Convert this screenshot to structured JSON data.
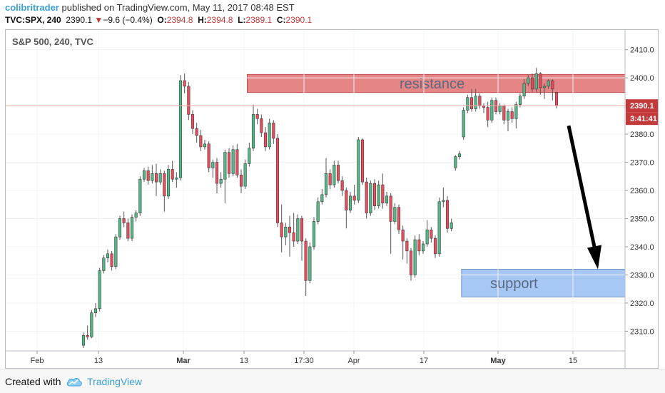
{
  "header": {
    "author": "colibritrader",
    "published_text": "published on TradingView.com, May 11, 2017 08:48 EST",
    "symbol": "TVC:SPX, 240",
    "last": "2390.1",
    "change_arrow": "▼",
    "change": "−9.6 (−0.4%)",
    "o_label": "O:",
    "o": "2394.8",
    "h_label": "H:",
    "h": "2394.8",
    "l_label": "L:",
    "l": "2389.1",
    "c_label": "C:",
    "c": "2390.1"
  },
  "footer": {
    "created_with": "Created with",
    "brand": "TradingView",
    "brand_icon": "tradingview-cloud-icon"
  },
  "chart_data": {
    "type": "candlestick",
    "title": "S&P 500, 240, TVC",
    "ylim": [
      2303,
      2417
    ],
    "y_ticks": [
      2310.0,
      2320.0,
      2330.0,
      2340.0,
      2350.0,
      2360.0,
      2370.0,
      2380.0,
      2390.0,
      2400.0,
      2410.0
    ],
    "x_tick_labels": [
      "Feb",
      "13",
      "Mar",
      "13",
      "17:30",
      "Apr",
      "17",
      "May",
      "15"
    ],
    "price_label": "2390.1",
    "countdown_label": "3:41:41",
    "current_price": 2390.1,
    "colors": {
      "up": "#53b987",
      "down": "#eb4d5c",
      "resistance": "#e06666",
      "support": "#8ab4f0",
      "arrow": "#000000",
      "label_bg": "#c43a3a"
    },
    "zones": [
      {
        "name": "resistance",
        "label": "resistance",
        "y_top": 2401.2,
        "y_bottom": 2394.8,
        "start_candle": 41
      },
      {
        "name": "support",
        "label": "support",
        "y_top": 2332.0,
        "y_bottom": 2322.2,
        "start_candle": 94
      }
    ],
    "arrow": {
      "from_y": 2383.0,
      "to_y": 2332.0
    },
    "candles": [
      [
        2305.0,
        2308.5,
        2304.0,
        2309.5
      ],
      [
        2308.5,
        2308.0,
        2307.0,
        2312.0
      ],
      [
        2308.0,
        2316.5,
        2307.5,
        2317.5
      ],
      [
        2316.5,
        2318.0,
        2315.0,
        2320.0
      ],
      [
        2318.0,
        2331.5,
        2317.0,
        2332.5
      ],
      [
        2331.5,
        2336.0,
        2330.5,
        2337.0
      ],
      [
        2336.0,
        2337.5,
        2334.5,
        2339.0
      ],
      [
        2337.5,
        2333.0,
        2331.5,
        2338.5
      ],
      [
        2333.0,
        2343.5,
        2332.0,
        2344.5
      ],
      [
        2343.5,
        2350.0,
        2342.5,
        2351.0
      ],
      [
        2350.0,
        2348.5,
        2347.0,
        2352.5
      ],
      [
        2348.5,
        2343.0,
        2342.0,
        2350.0
      ],
      [
        2343.0,
        2350.5,
        2342.0,
        2351.5
      ],
      [
        2350.5,
        2352.0,
        2349.0,
        2353.0
      ],
      [
        2352.0,
        2364.0,
        2351.0,
        2365.0
      ],
      [
        2364.0,
        2367.0,
        2363.0,
        2368.0
      ],
      [
        2367.0,
        2363.5,
        2362.0,
        2368.5
      ],
      [
        2363.5,
        2366.0,
        2362.5,
        2369.0
      ],
      [
        2366.0,
        2363.0,
        2358.0,
        2369.5
      ],
      [
        2363.0,
        2366.0,
        2362.0,
        2367.5
      ],
      [
        2366.0,
        2358.0,
        2352.5,
        2367.0
      ],
      [
        2358.0,
        2367.5,
        2357.0,
        2369.0
      ],
      [
        2367.5,
        2364.0,
        2363.0,
        2370.5
      ],
      [
        2364.0,
        2364.5,
        2361.0,
        2366.5
      ],
      [
        2364.5,
        2399.0,
        2363.5,
        2401.0
      ],
      [
        2399.0,
        2397.0,
        2394.5,
        2401.5
      ],
      [
        2397.0,
        2387.0,
        2385.0,
        2398.5
      ],
      [
        2387.0,
        2382.0,
        2380.0,
        2388.5
      ],
      [
        2382.0,
        2379.5,
        2377.0,
        2384.0
      ],
      [
        2379.5,
        2375.5,
        2374.0,
        2381.5
      ],
      [
        2375.5,
        2376.5,
        2374.5,
        2378.0
      ],
      [
        2376.5,
        2368.0,
        2366.5,
        2377.5
      ],
      [
        2368.0,
        2370.0,
        2364.5,
        2371.0
      ],
      [
        2370.0,
        2362.5,
        2359.0,
        2371.5
      ],
      [
        2362.5,
        2364.0,
        2361.0,
        2366.5
      ],
      [
        2364.0,
        2373.5,
        2355.5,
        2374.5
      ],
      [
        2373.5,
        2366.0,
        2364.5,
        2375.0
      ],
      [
        2366.0,
        2374.5,
        2365.0,
        2376.0
      ],
      [
        2374.5,
        2365.5,
        2364.5,
        2376.5
      ],
      [
        2365.5,
        2361.5,
        2359.0,
        2367.5
      ],
      [
        2361.5,
        2369.5,
        2360.5,
        2371.0
      ],
      [
        2369.5,
        2375.0,
        2368.5,
        2377.0
      ],
      [
        2375.0,
        2387.0,
        2374.0,
        2390.5
      ],
      [
        2387.0,
        2385.5,
        2383.5,
        2389.0
      ],
      [
        2385.5,
        2380.5,
        2379.0,
        2387.0
      ],
      [
        2380.5,
        2375.5,
        2374.0,
        2382.5
      ],
      [
        2375.5,
        2384.0,
        2374.5,
        2385.5
      ],
      [
        2384.0,
        2378.5,
        2376.5,
        2385.0
      ],
      [
        2378.5,
        2348.5,
        2347.0,
        2380.0
      ],
      [
        2348.5,
        2343.5,
        2338.0,
        2355.0
      ],
      [
        2343.5,
        2347.0,
        2340.5,
        2348.5
      ],
      [
        2347.0,
        2345.0,
        2336.5,
        2351.0
      ],
      [
        2345.0,
        2342.0,
        2340.0,
        2352.0
      ],
      [
        2342.0,
        2350.0,
        2341.0,
        2351.5
      ],
      [
        2350.0,
        2342.0,
        2335.0,
        2351.0
      ],
      [
        2342.0,
        2328.0,
        2322.5,
        2343.0
      ],
      [
        2328.0,
        2340.0,
        2327.0,
        2341.5
      ],
      [
        2340.0,
        2349.0,
        2339.0,
        2350.5
      ],
      [
        2349.0,
        2356.0,
        2348.0,
        2357.5
      ],
      [
        2356.0,
        2358.5,
        2355.0,
        2360.5
      ],
      [
        2358.5,
        2366.0,
        2357.5,
        2371.5
      ],
      [
        2366.0,
        2362.0,
        2360.5,
        2367.5
      ],
      [
        2362.0,
        2369.0,
        2361.0,
        2370.5
      ],
      [
        2369.0,
        2363.5,
        2362.5,
        2370.5
      ],
      [
        2363.5,
        2360.0,
        2358.0,
        2365.0
      ],
      [
        2360.0,
        2353.0,
        2346.5,
        2361.0
      ],
      [
        2353.0,
        2358.0,
        2352.0,
        2359.5
      ],
      [
        2358.0,
        2356.5,
        2355.0,
        2362.0
      ],
      [
        2356.5,
        2378.0,
        2355.5,
        2379.0
      ],
      [
        2378.0,
        2363.0,
        2362.0,
        2378.5
      ],
      [
        2363.0,
        2352.0,
        2350.0,
        2364.5
      ],
      [
        2352.0,
        2362.5,
        2351.0,
        2363.5
      ],
      [
        2362.5,
        2354.5,
        2353.0,
        2364.0
      ],
      [
        2354.5,
        2362.0,
        2353.5,
        2363.5
      ],
      [
        2362.0,
        2355.5,
        2353.5,
        2366.0
      ],
      [
        2355.5,
        2358.0,
        2354.5,
        2359.5
      ],
      [
        2358.0,
        2349.0,
        2337.5,
        2359.0
      ],
      [
        2349.0,
        2354.0,
        2348.0,
        2355.5
      ],
      [
        2354.0,
        2346.0,
        2344.5,
        2355.0
      ],
      [
        2346.0,
        2342.0,
        2335.5,
        2347.5
      ],
      [
        2342.0,
        2338.5,
        2334.0,
        2343.0
      ],
      [
        2338.5,
        2330.0,
        2328.0,
        2339.5
      ],
      [
        2330.0,
        2342.5,
        2329.0,
        2344.0
      ],
      [
        2342.5,
        2338.5,
        2337.0,
        2344.5
      ],
      [
        2338.5,
        2341.0,
        2337.5,
        2342.0
      ],
      [
        2341.0,
        2346.0,
        2340.0,
        2349.5
      ],
      [
        2346.0,
        2343.0,
        2341.5,
        2347.0
      ],
      [
        2343.0,
        2337.5,
        2336.0,
        2344.0
      ],
      [
        2337.5,
        2356.0,
        2336.5,
        2357.5
      ],
      [
        2356.0,
        2356.5,
        2354.0,
        2361.0
      ],
      [
        2356.5,
        2346.5,
        2345.0,
        2358.0
      ],
      [
        2346.5,
        2348.5,
        2345.5,
        2350.0
      ],
      [
        2368.0,
        2372.0,
        2367.0,
        2372.5
      ],
      [
        2372.0,
        2373.0,
        2371.0,
        2374.0
      ],
      [
        2379.0,
        2388.5,
        2378.0,
        2389.5
      ],
      [
        2388.5,
        2393.0,
        2387.5,
        2394.0
      ],
      [
        2393.0,
        2389.0,
        2388.0,
        2396.0
      ],
      [
        2389.0,
        2393.5,
        2388.0,
        2396.0
      ],
      [
        2393.5,
        2390.0,
        2389.0,
        2394.5
      ],
      [
        2390.0,
        2389.5,
        2387.5,
        2391.0
      ],
      [
        2389.5,
        2385.0,
        2382.5,
        2391.5
      ],
      [
        2385.0,
        2392.0,
        2384.0,
        2393.0
      ],
      [
        2392.0,
        2388.0,
        2387.0,
        2393.0
      ],
      [
        2388.0,
        2390.0,
        2387.0,
        2391.0
      ],
      [
        2390.0,
        2385.0,
        2383.5,
        2390.5
      ],
      [
        2385.0,
        2388.0,
        2381.0,
        2389.0
      ],
      [
        2388.0,
        2385.5,
        2384.0,
        2389.5
      ],
      [
        2385.5,
        2390.5,
        2382.0,
        2391.5
      ],
      [
        2390.5,
        2393.5,
        2389.5,
        2394.5
      ],
      [
        2393.5,
        2398.0,
        2392.5,
        2399.5
      ],
      [
        2398.0,
        2400.0,
        2397.0,
        2401.0
      ],
      [
        2400.0,
        2396.0,
        2395.0,
        2401.5
      ],
      [
        2396.0,
        2401.5,
        2395.0,
        2403.5
      ],
      [
        2401.5,
        2396.5,
        2394.0,
        2402.0
      ],
      [
        2396.5,
        2397.0,
        2392.5,
        2398.0
      ],
      [
        2397.0,
        2399.0,
        2396.0,
        2399.5
      ],
      [
        2399.0,
        2396.0,
        2392.0,
        2399.5
      ],
      [
        2394.8,
        2390.1,
        2389.1,
        2394.8
      ]
    ]
  }
}
